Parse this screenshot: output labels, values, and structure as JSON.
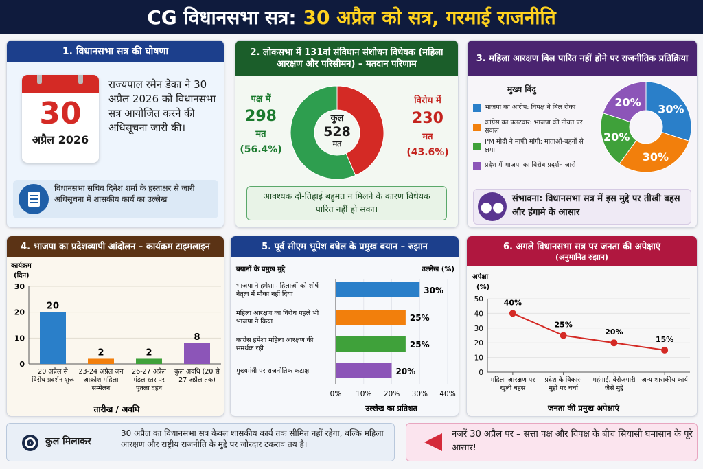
{
  "header": {
    "title_part1": "CG विधानसभा सत्र:",
    "title_part2": "30 अप्रैल को सत्र, गरमाई राजनीति"
  },
  "panel1": {
    "title": "1. विधानसभा सत्र की घोषणा",
    "calendar_day": "30",
    "calendar_month": "अप्रैल 2026",
    "text": "राज्यपाल रमेन डेका ने 30 अप्रैल 2026 को विधानसभा सत्र आयोजित करने की अधिसूचना जारी की।",
    "note": "विधानसभा सचिव दिनेश शर्मा के हस्ताक्षर से जारी अधिसूचना में शासकीय कार्य का उल्लेख",
    "icon": "document-icon"
  },
  "panel2": {
    "title": "2. लोकसभा में 131वां संविधान संशोधन विधेयक (महिला आरक्षण और परिसीमन) – मतदान परिणाम",
    "for_label": "पक्ष में",
    "for_value": "298",
    "for_unit": "मत",
    "for_pct": "(56.4%)",
    "against_label": "विरोध में",
    "against_value": "230",
    "against_unit": "मत",
    "against_pct": "(43.6%)",
    "center_label": "कुल",
    "center_value": "528",
    "center_unit": "मत",
    "note": "आवश्यक दो-तिहाई बहुमत न मिलने के कारण विधेयक पारित नहीं हो सका।"
  },
  "panel3": {
    "title": "3. महिला आरक्षण बिल पारित नहीं होने पर राजनीतिक प्रतिक्रिया",
    "legend_title": "मुख्य बिंदु",
    "note": "संभावना: विधानसभा सत्र में इस मुद्दे पर तीखी बहस और हंगामे के आसार",
    "icon": "people-group-icon"
  },
  "panel4": {
    "title": "4. भाजपा का प्रदेशव्यापी आंदोलन – कार्यक्रम टाइमलाइन"
  },
  "panel5": {
    "title": "5. पूर्व सीएम भूपेश बघेल के प्रमुख बयान – रुझान"
  },
  "panel6": {
    "title": "6. अगले विधानसभा सत्र पर जनता की अपेक्षाएं",
    "subtitle": "(अनुमानित रुझान)"
  },
  "footer": {
    "left_label": "कुल मिलाकर",
    "left_text": "30 अप्रैल का विधानसभा सत्र केवल शासकीय कार्य तक सीमित नहीं रहेगा, बल्कि महिला आरक्षण और राष्ट्रीय राजनीति के मुद्दे पर जोरदार टकराव तय है।",
    "right_text": "नजरें 30 अप्रैल पर – सत्ता पक्ष और विपक्ष के बीच सियासी घमासान के पूरे आसार!",
    "left_icon": "target-icon",
    "right_icon": "megaphone-icon"
  },
  "chart_data": [
    {
      "type": "pie",
      "donut": true,
      "categories": [
        "पक्ष में",
        "विरोध में"
      ],
      "values": [
        298,
        230
      ],
      "percent": [
        56.4,
        43.6
      ],
      "colors": [
        "#2e9e4f",
        "#d42a25"
      ]
    },
    {
      "type": "pie",
      "donut": true,
      "categories": [
        "भाजपा का आरोप: विपक्ष ने बिल रोका",
        "कांग्रेस का पलटवार: भाजपा की नीयत पर सवाल",
        "PM मोदी ने माफी मांगी: माताओं-बहनों से क्षमा",
        "प्रदेश में भाजपा का विरोध प्रदर्शन जारी"
      ],
      "values": [
        30,
        30,
        20,
        20
      ],
      "labels": [
        "30%",
        "30%",
        "20%",
        "20%"
      ],
      "colors": [
        "#2a7fc9",
        "#f27f0c",
        "#3fa13a",
        "#8c55b8"
      ]
    },
    {
      "type": "bar",
      "categories": [
        "20 अप्रैल से विरोध प्रदर्शन शुरू",
        "23-24 अप्रैल जन आक्रोश महिला सम्मेलन",
        "26-27 अप्रैल मंडल स्तर पर पुतला दहन",
        "कुल अवधि (20 से 27 अप्रैल तक)"
      ],
      "values": [
        20,
        2,
        2,
        8
      ],
      "colors": [
        "#2a7fc9",
        "#f27f0c",
        "#3fa13a",
        "#8c55b8"
      ],
      "ylabel": "कार्यक्रम (दिन)",
      "xlabel": "तारीख / अवधि",
      "ylim": [
        0,
        30
      ],
      "yticks": [
        0,
        10,
        20,
        30
      ],
      "grid": true
    },
    {
      "type": "bar",
      "orientation": "horizontal",
      "categories": [
        "भाजपा ने हमेशा महिलाओं को शीर्ष नेतृत्व में मौका नहीं दिया",
        "महिला आरक्षण का विरोध पहले भी भाजपा ने किया",
        "कांग्रेस हमेशा महिला आरक्षण की समर्थक रही",
        "मुख्यमंत्री पर राजनीतिक कटाक्ष"
      ],
      "values": [
        30,
        25,
        25,
        20
      ],
      "colors": [
        "#2a7fc9",
        "#f27f0c",
        "#3fa13a",
        "#8c55b8"
      ],
      "category_header": "बयानों के प्रमुख मुद्दे",
      "value_header": "उल्लेख (%)",
      "xlabel": "उल्लेख का प्रतिशत",
      "xlim": [
        0,
        40
      ],
      "xticks": [
        "0%",
        "10%",
        "20%",
        "30%",
        "40%"
      ],
      "grid": true
    },
    {
      "type": "line",
      "categories": [
        "महिला आरक्षण पर खुली बहस",
        "प्रदेश के विकास मुद्दों पर चर्चा",
        "महंगाई, बेरोजगारी जैसे मुद्दे",
        "अन्य शासकीय कार्य"
      ],
      "values": [
        40,
        25,
        20,
        15
      ],
      "labels": [
        "40%",
        "25%",
        "20%",
        "15%"
      ],
      "color": "#d42a25",
      "ylabel": "अपेक्षा (%)",
      "xlabel": "जनता की प्रमुख अपेक्षाएं",
      "ylim": [
        0,
        50
      ],
      "yticks": [
        0,
        10,
        20,
        30,
        40,
        50
      ],
      "grid": true
    }
  ]
}
